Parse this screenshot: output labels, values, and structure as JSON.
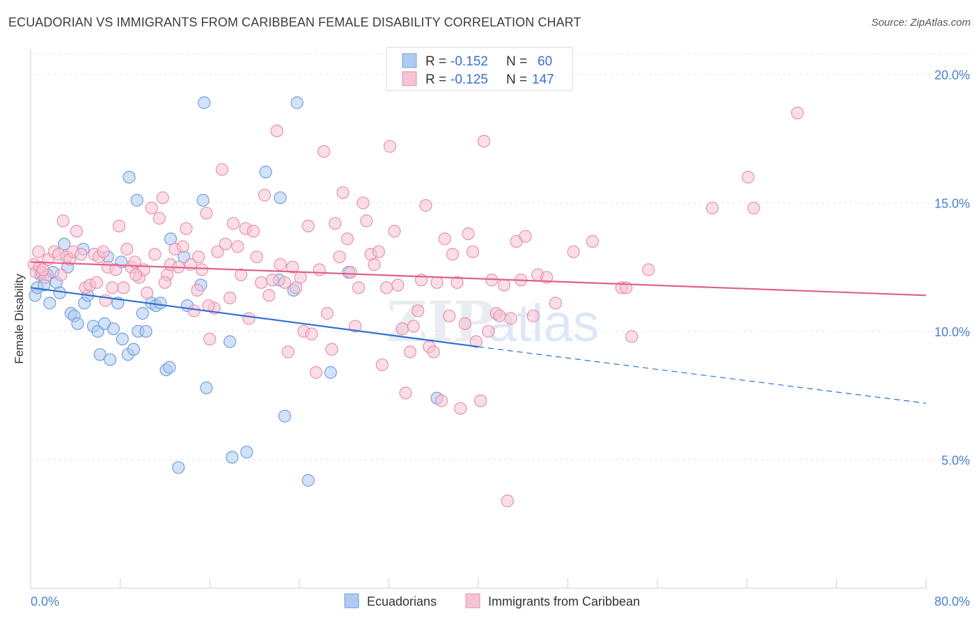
{
  "title": "ECUADORIAN VS IMMIGRANTS FROM CARIBBEAN FEMALE DISABILITY CORRELATION CHART",
  "source": "Source: ZipAtlas.com",
  "chart_data": {
    "type": "scatter",
    "ylabel": "Female Disability",
    "xlim": [
      0,
      80
    ],
    "ylim": [
      0,
      21
    ],
    "x_tick_labels": [
      "0.0%",
      "80.0%"
    ],
    "y_ticks": [
      5,
      10,
      15,
      20
    ],
    "y_tick_labels": [
      "5.0%",
      "10.0%",
      "15.0%",
      "20.0%"
    ],
    "watermark": "ZIPatlas",
    "legend": {
      "rows": [
        {
          "r_label": "R =",
          "r": "-0.152",
          "n_label": "N =",
          "n": "60"
        },
        {
          "r_label": "R =",
          "r": "-0.125",
          "n_label": "N =",
          "n": "147"
        }
      ]
    },
    "series": [
      {
        "name": "Ecuadorians",
        "color": "#6fa0e0",
        "fill": "#aecbf0",
        "line_color": "#2f6fd6",
        "trend": {
          "x0": 0,
          "y0": 11.7,
          "x1": 40,
          "y1": 9.4,
          "dash_x1": 80,
          "dash_y1": 7.2
        },
        "points": [
          [
            0.4,
            11.4
          ],
          [
            0.6,
            11.7
          ],
          [
            0.9,
            12.2
          ],
          [
            1.2,
            11.8
          ],
          [
            1.5,
            12.2
          ],
          [
            1.7,
            11.1
          ],
          [
            2.0,
            12.3
          ],
          [
            2.3,
            11.9
          ],
          [
            2.6,
            11.5
          ],
          [
            3.3,
            12.5
          ],
          [
            3.6,
            10.7
          ],
          [
            3.9,
            10.6
          ],
          [
            4.2,
            10.3
          ],
          [
            4.8,
            11.1
          ],
          [
            5.1,
            11.4
          ],
          [
            5.6,
            10.2
          ],
          [
            6.0,
            10.0
          ],
          [
            6.2,
            9.1
          ],
          [
            6.6,
            10.3
          ],
          [
            7.1,
            8.9
          ],
          [
            7.4,
            10.1
          ],
          [
            7.8,
            11.1
          ],
          [
            8.2,
            9.7
          ],
          [
            8.7,
            9.1
          ],
          [
            9.2,
            9.3
          ],
          [
            9.6,
            10.0
          ],
          [
            10.0,
            10.7
          ],
          [
            10.3,
            10.0
          ],
          [
            10.8,
            11.1
          ],
          [
            11.2,
            11.0
          ],
          [
            11.6,
            11.1
          ],
          [
            12.1,
            8.5
          ],
          [
            12.4,
            8.6
          ],
          [
            12.5,
            13.6
          ],
          [
            13.7,
            12.9
          ],
          [
            14.0,
            11.0
          ],
          [
            15.2,
            11.8
          ],
          [
            15.4,
            15.1
          ],
          [
            15.5,
            18.9
          ],
          [
            15.7,
            7.8
          ],
          [
            17.8,
            9.6
          ],
          [
            18.0,
            5.1
          ],
          [
            19.3,
            5.3
          ],
          [
            21.0,
            16.2
          ],
          [
            22.2,
            12.0
          ],
          [
            22.3,
            15.2
          ],
          [
            22.7,
            6.7
          ],
          [
            23.5,
            11.6
          ],
          [
            23.8,
            18.9
          ],
          [
            24.8,
            4.2
          ],
          [
            26.8,
            8.4
          ],
          [
            28.4,
            12.3
          ],
          [
            36.3,
            7.4
          ],
          [
            3.0,
            13.4
          ],
          [
            4.7,
            13.2
          ],
          [
            6.9,
            12.9
          ],
          [
            8.1,
            12.7
          ],
          [
            8.8,
            16.0
          ],
          [
            9.5,
            15.1
          ],
          [
            13.2,
            4.7
          ]
        ]
      },
      {
        "name": "Immigrants from Caribbean",
        "color": "#e890ab",
        "fill": "#f5c3d3",
        "line_color": "#e0608a",
        "trend": {
          "x0": 0,
          "y0": 12.7,
          "x1": 80,
          "y1": 11.4
        },
        "points": [
          [
            0.3,
            12.6
          ],
          [
            0.5,
            12.3
          ],
          [
            0.8,
            12.5
          ],
          [
            1.0,
            12.3
          ],
          [
            1.3,
            12.1
          ],
          [
            1.6,
            12.8
          ],
          [
            2.1,
            13.1
          ],
          [
            2.5,
            13.0
          ],
          [
            2.9,
            14.3
          ],
          [
            3.2,
            12.9
          ],
          [
            3.5,
            12.8
          ],
          [
            3.8,
            13.1
          ],
          [
            4.1,
            13.9
          ],
          [
            4.5,
            13.0
          ],
          [
            4.9,
            11.7
          ],
          [
            5.3,
            11.8
          ],
          [
            5.7,
            13.0
          ],
          [
            6.1,
            12.9
          ],
          [
            6.5,
            13.1
          ],
          [
            6.9,
            12.5
          ],
          [
            7.3,
            11.7
          ],
          [
            7.6,
            12.4
          ],
          [
            7.9,
            14.1
          ],
          [
            8.3,
            11.7
          ],
          [
            8.6,
            13.2
          ],
          [
            9.0,
            12.5
          ],
          [
            9.3,
            12.7
          ],
          [
            9.7,
            12.1
          ],
          [
            10.1,
            12.4
          ],
          [
            10.4,
            11.5
          ],
          [
            10.8,
            14.8
          ],
          [
            11.1,
            13.0
          ],
          [
            11.5,
            14.4
          ],
          [
            11.8,
            15.2
          ],
          [
            12.2,
            12.2
          ],
          [
            12.5,
            12.6
          ],
          [
            12.9,
            13.2
          ],
          [
            13.2,
            12.5
          ],
          [
            13.6,
            13.3
          ],
          [
            13.9,
            14.0
          ],
          [
            14.3,
            12.6
          ],
          [
            14.6,
            10.8
          ],
          [
            15.0,
            12.9
          ],
          [
            15.3,
            12.4
          ],
          [
            15.7,
            14.6
          ],
          [
            16.0,
            9.7
          ],
          [
            16.4,
            10.9
          ],
          [
            16.7,
            13.1
          ],
          [
            17.1,
            16.3
          ],
          [
            17.4,
            13.4
          ],
          [
            17.8,
            11.3
          ],
          [
            18.1,
            14.2
          ],
          [
            18.5,
            13.3
          ],
          [
            18.8,
            12.2
          ],
          [
            19.2,
            14.0
          ],
          [
            19.5,
            10.5
          ],
          [
            19.9,
            13.9
          ],
          [
            20.2,
            12.9
          ],
          [
            20.6,
            11.9
          ],
          [
            20.9,
            15.3
          ],
          [
            21.3,
            11.4
          ],
          [
            21.6,
            12.0
          ],
          [
            22.0,
            17.8
          ],
          [
            22.3,
            12.6
          ],
          [
            22.7,
            11.9
          ],
          [
            23.0,
            9.2
          ],
          [
            23.4,
            12.5
          ],
          [
            23.7,
            11.7
          ],
          [
            24.1,
            12.1
          ],
          [
            24.4,
            10.0
          ],
          [
            24.8,
            14.1
          ],
          [
            25.1,
            9.9
          ],
          [
            25.5,
            8.4
          ],
          [
            25.8,
            12.4
          ],
          [
            26.2,
            17.0
          ],
          [
            26.5,
            10.7
          ],
          [
            26.9,
            9.3
          ],
          [
            27.2,
            14.2
          ],
          [
            27.6,
            12.9
          ],
          [
            27.9,
            15.4
          ],
          [
            28.3,
            13.6
          ],
          [
            28.6,
            12.3
          ],
          [
            29.0,
            10.2
          ],
          [
            29.3,
            11.7
          ],
          [
            29.7,
            15.0
          ],
          [
            30.0,
            14.3
          ],
          [
            30.4,
            13.0
          ],
          [
            30.7,
            12.6
          ],
          [
            31.1,
            13.1
          ],
          [
            31.4,
            8.7
          ],
          [
            31.8,
            11.7
          ],
          [
            32.1,
            17.2
          ],
          [
            32.5,
            13.9
          ],
          [
            32.8,
            11.8
          ],
          [
            33.2,
            10.1
          ],
          [
            33.5,
            7.6
          ],
          [
            33.9,
            9.2
          ],
          [
            34.2,
            10.2
          ],
          [
            34.6,
            10.8
          ],
          [
            34.9,
            12.0
          ],
          [
            35.3,
            14.9
          ],
          [
            35.6,
            9.4
          ],
          [
            36.0,
            9.2
          ],
          [
            36.3,
            11.9
          ],
          [
            36.7,
            7.3
          ],
          [
            37.0,
            13.6
          ],
          [
            37.4,
            10.6
          ],
          [
            37.7,
            13.0
          ],
          [
            38.1,
            11.9
          ],
          [
            38.4,
            7.0
          ],
          [
            38.8,
            10.3
          ],
          [
            39.1,
            13.8
          ],
          [
            39.5,
            13.1
          ],
          [
            39.8,
            9.6
          ],
          [
            40.2,
            7.3
          ],
          [
            40.5,
            17.4
          ],
          [
            40.9,
            10.0
          ],
          [
            41.2,
            12.0
          ],
          [
            41.6,
            10.7
          ],
          [
            41.9,
            10.6
          ],
          [
            42.3,
            11.8
          ],
          [
            42.6,
            3.4
          ],
          [
            42.9,
            10.5
          ],
          [
            43.4,
            13.5
          ],
          [
            43.8,
            12.0
          ],
          [
            44.2,
            13.7
          ],
          [
            44.9,
            10.6
          ],
          [
            45.3,
            12.2
          ],
          [
            46.1,
            12.1
          ],
          [
            46.9,
            11.1
          ],
          [
            48.5,
            13.1
          ],
          [
            50.2,
            13.5
          ],
          [
            52.8,
            11.7
          ],
          [
            53.2,
            11.7
          ],
          [
            53.7,
            9.8
          ],
          [
            55.2,
            12.4
          ],
          [
            60.9,
            14.8
          ],
          [
            64.1,
            16.0
          ],
          [
            64.6,
            14.8
          ],
          [
            68.5,
            18.5
          ],
          [
            0.7,
            13.1
          ],
          [
            1.1,
            12.4
          ],
          [
            2.7,
            12.2
          ],
          [
            5.9,
            11.9
          ],
          [
            6.7,
            11.2
          ],
          [
            9.4,
            12.2
          ],
          [
            12.0,
            11.9
          ],
          [
            14.9,
            11.6
          ],
          [
            15.9,
            11.0
          ]
        ]
      }
    ]
  },
  "bottom_legend": [
    "Ecuadorians",
    "Immigrants from Caribbean"
  ],
  "watermark_zip": "ZIP",
  "watermark_atlas": "atlas"
}
